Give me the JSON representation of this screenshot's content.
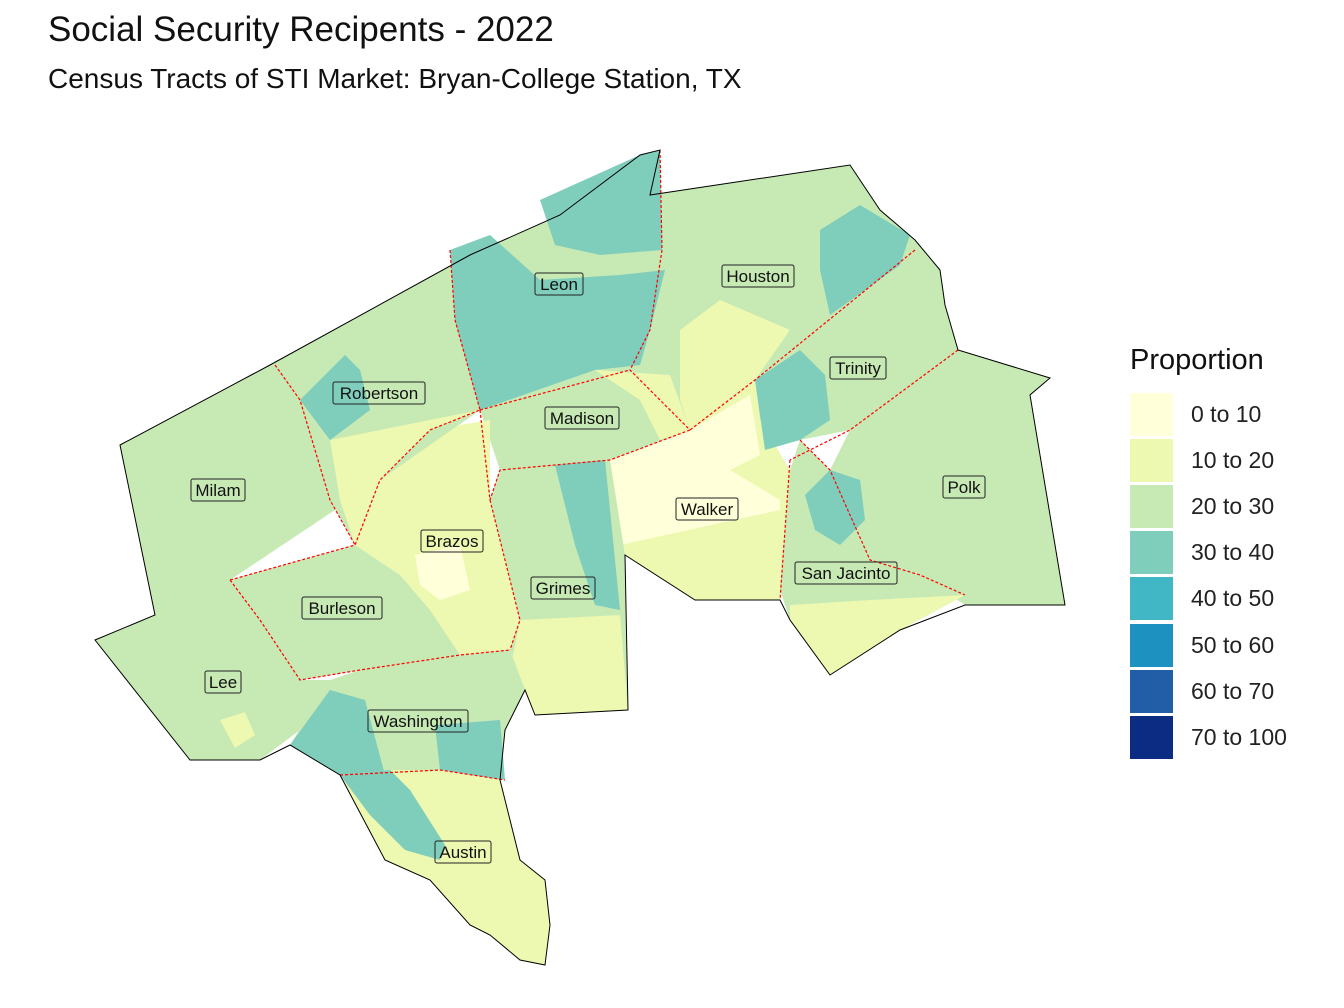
{
  "title": "Social Security Recipents - 2022",
  "subtitle": "Census Tracts of STI Market: Bryan-College Station, TX",
  "legend": {
    "title": "Proportion",
    "items": [
      {
        "label": "0 to 10",
        "color": "#ffffd9"
      },
      {
        "label": "10 to 20",
        "color": "#edf8b1"
      },
      {
        "label": "20 to 30",
        "color": "#c7e9b4"
      },
      {
        "label": "30 to 40",
        "color": "#7fcdbb"
      },
      {
        "label": "40 to 50",
        "color": "#41b6c4"
      },
      {
        "label": "50 to 60",
        "color": "#1d91c0"
      },
      {
        "label": "60 to 70",
        "color": "#225ea8"
      },
      {
        "label": "70 to 100",
        "color": "#0c2c84"
      }
    ]
  },
  "counties": [
    {
      "name": "Leon",
      "bin": "30 to 40"
    },
    {
      "name": "Houston",
      "bin": "20 to 30"
    },
    {
      "name": "Trinity",
      "bin": "20 to 30"
    },
    {
      "name": "Robertson",
      "bin": "20 to 30"
    },
    {
      "name": "Madison",
      "bin": "20 to 30"
    },
    {
      "name": "Milam",
      "bin": "20 to 30"
    },
    {
      "name": "Polk",
      "bin": "20 to 30"
    },
    {
      "name": "Walker",
      "bin": "0 to 10"
    },
    {
      "name": "Brazos",
      "bin": "10 to 20"
    },
    {
      "name": "Grimes",
      "bin": "20 to 30"
    },
    {
      "name": "San Jacinto",
      "bin": "20 to 30"
    },
    {
      "name": "Burleson",
      "bin": "20 to 30"
    },
    {
      "name": "Lee",
      "bin": "20 to 30"
    },
    {
      "name": "Washington",
      "bin": "20 to 30"
    },
    {
      "name": "Austin",
      "bin": "10 to 20"
    }
  ],
  "colors": {
    "county_border": "#ff0000",
    "outline": "#000000"
  }
}
